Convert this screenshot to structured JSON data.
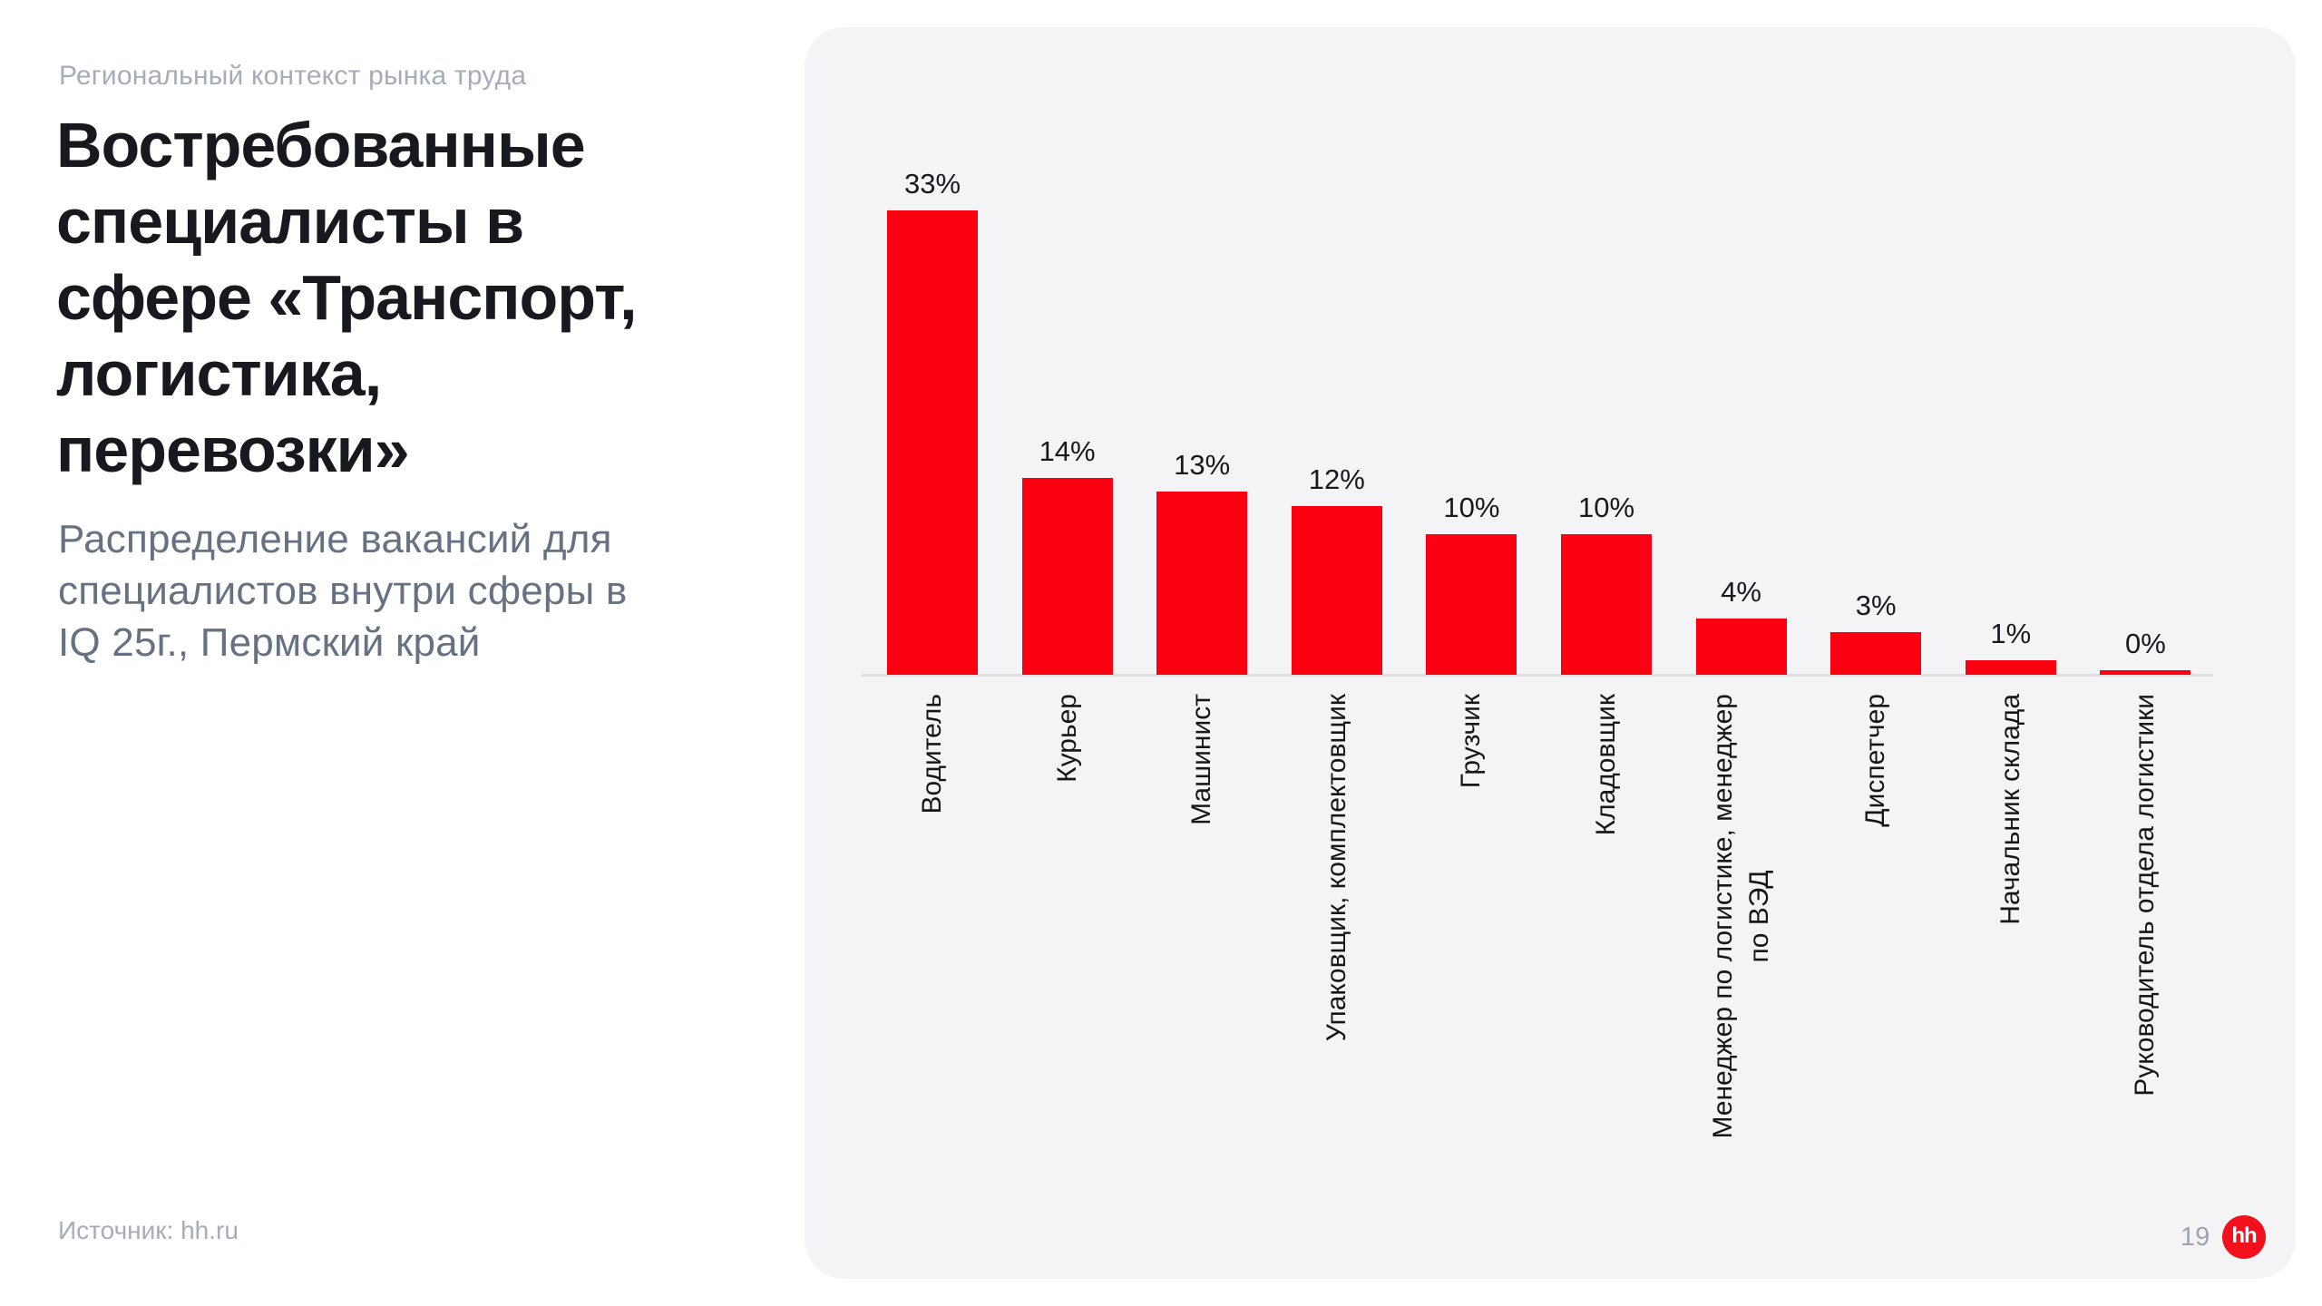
{
  "slide": {
    "eyebrow": "Региональный контекст рынка труда",
    "title_lines": [
      "Востребованные",
      "специалисты в",
      "сфере «Транспорт,",
      "логистика,",
      "перевозки»"
    ],
    "subtitle_lines": [
      "Распределение вакансий для",
      "специалистов внутри сферы в",
      "IQ 25г., Пермский край"
    ],
    "source": "Источник: hh.ru",
    "page_number": "19",
    "logo_text": "hh"
  },
  "colors": {
    "accent_red": "#FB0011",
    "logo_red": "#F2101C",
    "card_bg": "#F4F4F6",
    "title_text": "#17191F",
    "subtitle_text": "#667182",
    "muted_text": "#A6ACBA",
    "axis_line": "#DEDEE2",
    "chart_text": "#15161A"
  },
  "chart_data": {
    "type": "bar",
    "unit": "%",
    "bar_color": "#FB0011",
    "categories": [
      "Водитель",
      "Курьер",
      "Машинист",
      "Упаковщик, комплектовщик",
      "Грузчик",
      "Кладовщик",
      "Менеджер по логистике, менеджер по ВЭД",
      "Диспетчер",
      "Начальник склада",
      "Руководитель отдела логистики"
    ],
    "category_lines": [
      [
        "Водитель"
      ],
      [
        "Курьер"
      ],
      [
        "Машинист"
      ],
      [
        "Упаковщик, комплектовщик"
      ],
      [
        "Грузчик"
      ],
      [
        "Кладовщик"
      ],
      [
        "Менеджер по логистике, менеджер",
        "по ВЭД"
      ],
      [
        "Диспетчер"
      ],
      [
        "Начальник склада"
      ],
      [
        "Руководитель отдела логистики"
      ]
    ],
    "values": [
      33,
      14,
      13,
      12,
      10,
      10,
      4,
      3,
      1,
      0
    ],
    "value_labels": [
      "33%",
      "14%",
      "13%",
      "12%",
      "10%",
      "10%",
      "4%",
      "3%",
      "1%",
      "0%"
    ],
    "ylim": [
      0,
      35
    ],
    "grid": false,
    "legend": false,
    "value_labels_position": "above-bars",
    "category_labels_rotation_deg": -90
  }
}
